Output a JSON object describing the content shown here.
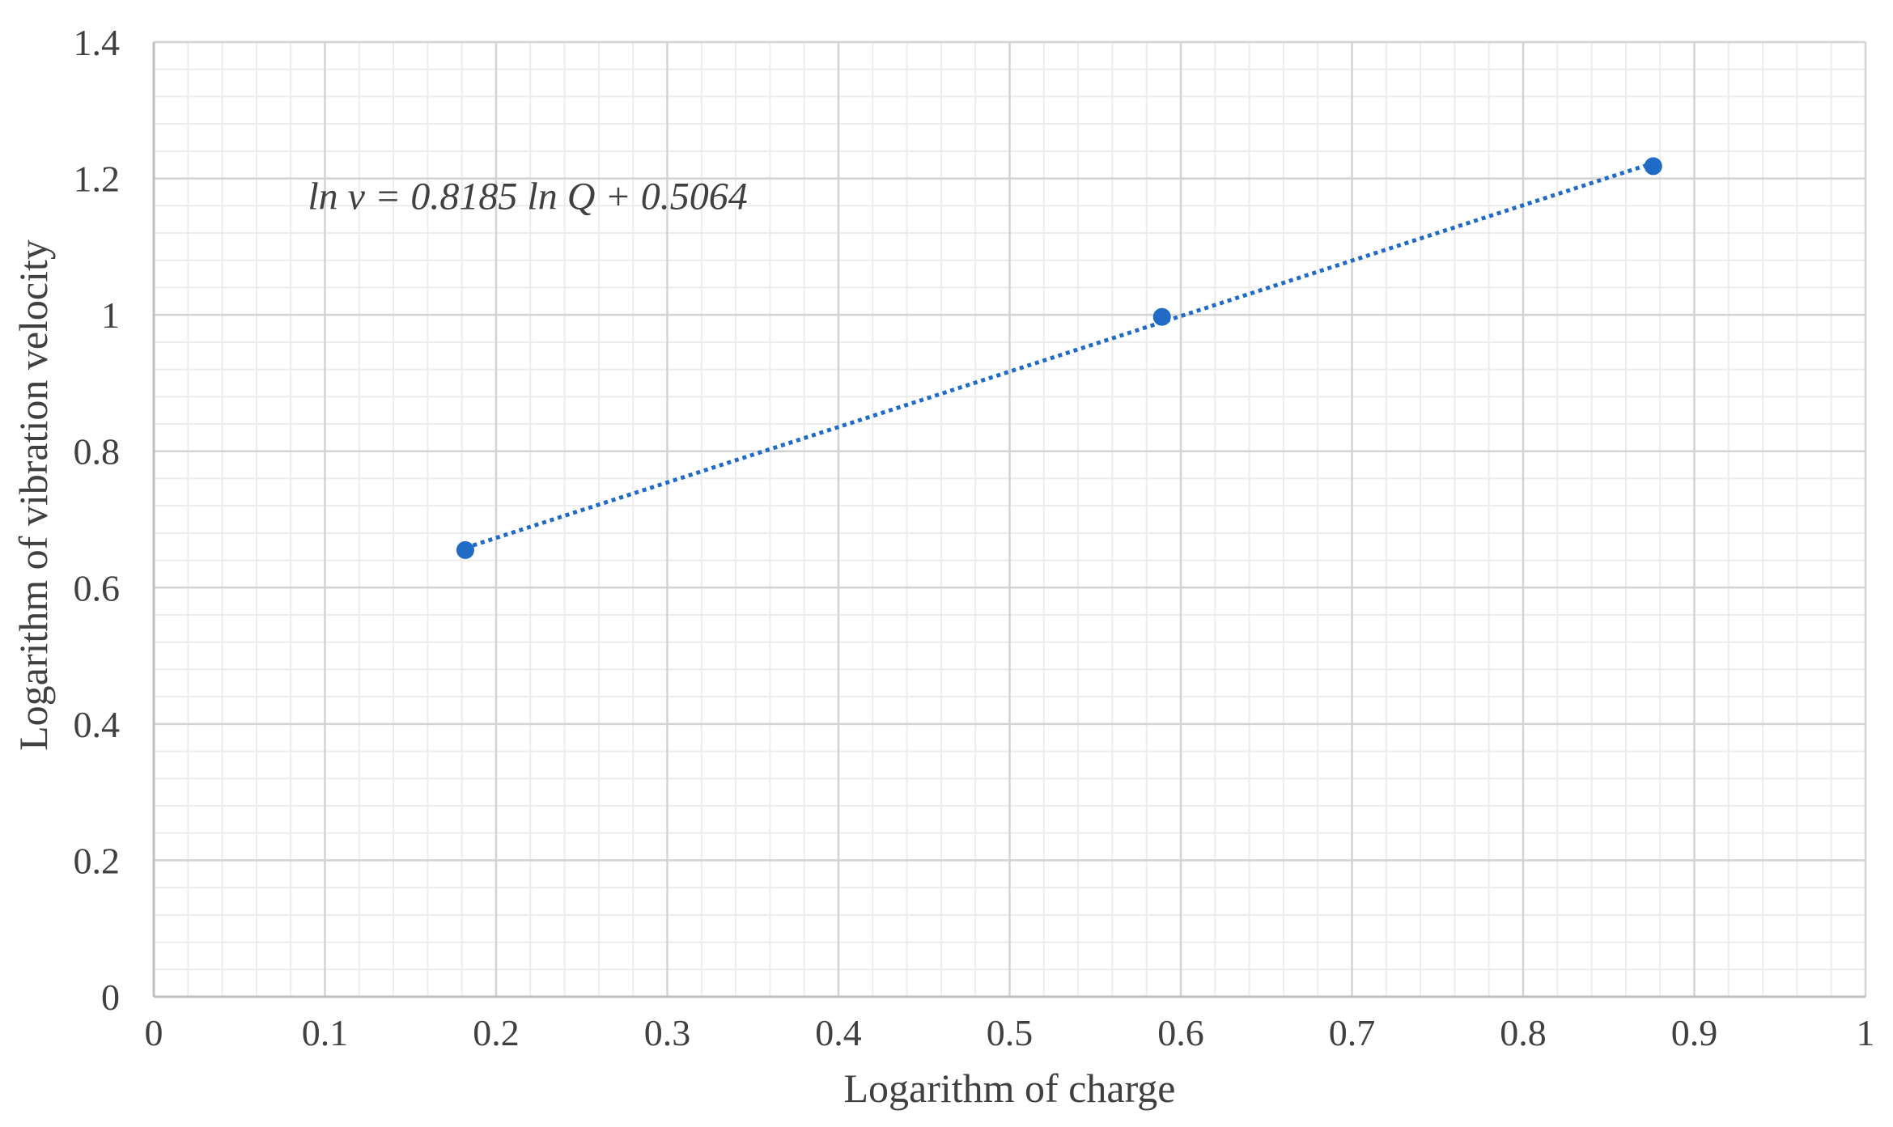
{
  "chart_data": {
    "type": "scatter",
    "title": "",
    "xlabel": "Logarithm of charge",
    "ylabel": "Logarithm of  vibration velocity",
    "xlim": [
      0,
      1
    ],
    "ylim": [
      0,
      1.4
    ],
    "x_ticks": [
      "0",
      "0.1",
      "0.2",
      "0.3",
      "0.4",
      "0.5",
      "0.6",
      "0.7",
      "0.8",
      "0.9",
      "1"
    ],
    "y_ticks": [
      "0",
      "0.2",
      "0.4",
      "0.6",
      "0.8",
      "1",
      "1.2",
      "1.4"
    ],
    "grid": true,
    "minor_grid": true,
    "legend": "none",
    "series": [
      {
        "points": [
          {
            "x": 0.182,
            "y": 0.655
          },
          {
            "x": 0.589,
            "y": 0.997
          },
          {
            "x": 0.876,
            "y": 1.218
          }
        ],
        "color": "#1f6bc6",
        "trendline": {
          "type": "linear",
          "style": "dotted"
        }
      }
    ],
    "annotations": [
      {
        "text": "ln v = 0.8185 ln Q + 0.5064",
        "x": 0.09,
        "y": 1.155
      }
    ]
  }
}
